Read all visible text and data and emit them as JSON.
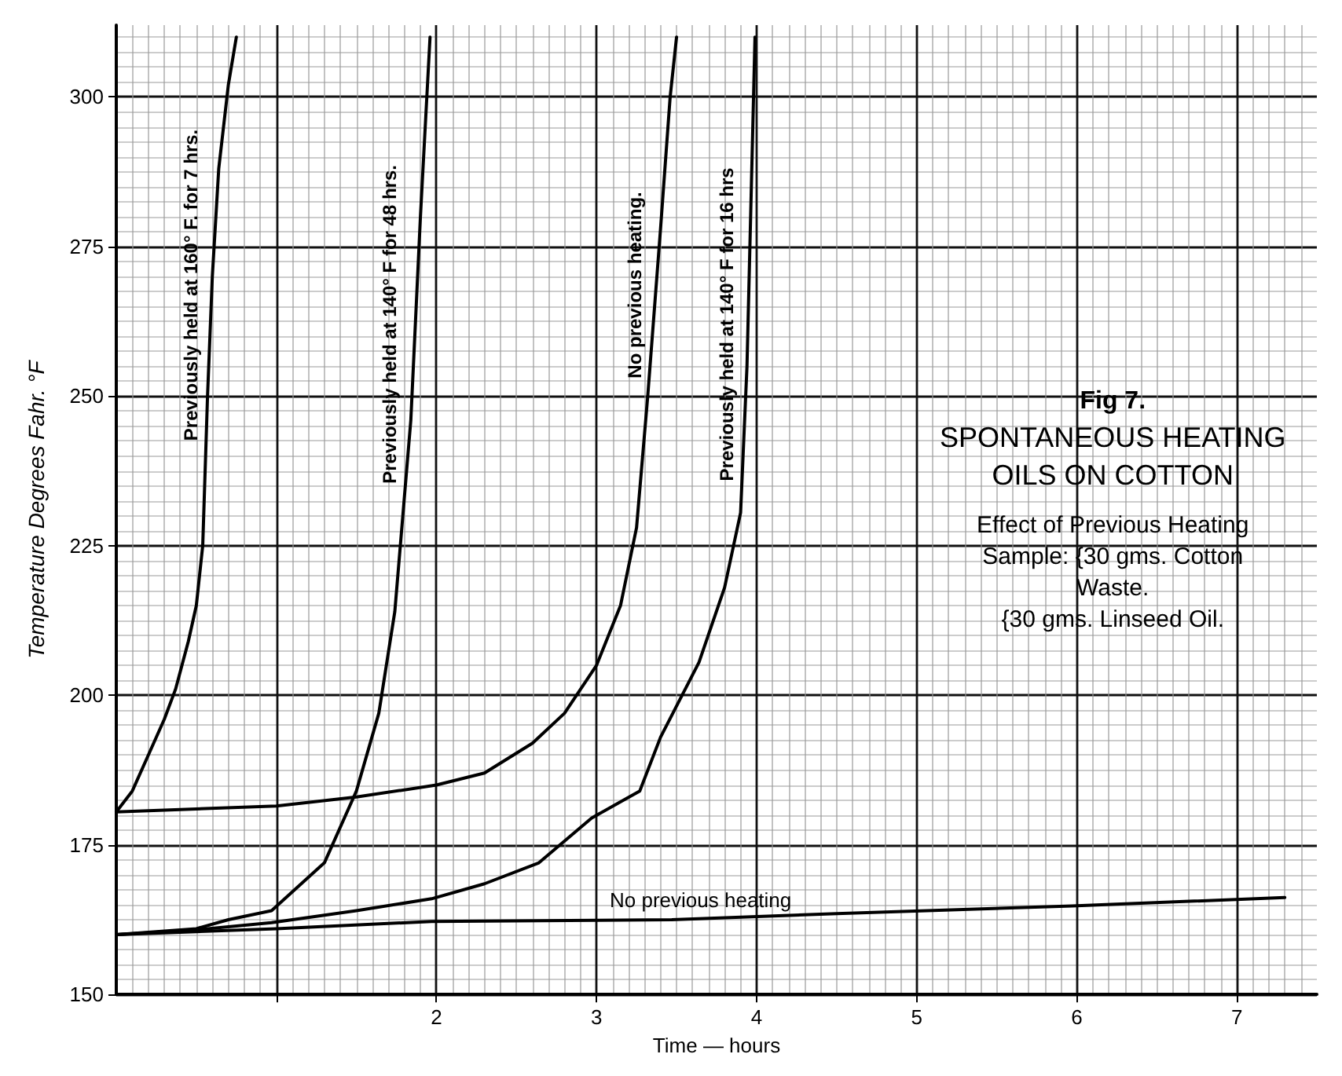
{
  "chart_data": {
    "type": "line",
    "title": "Fig 7.",
    "subtitle": "SPONTANEOUS HEATING OILS ON COTTON",
    "xlabel": "Time — hours",
    "ylabel": "Temperature Degrees Fahr. °F",
    "annotations": [
      "Effect of Previous Heating",
      "Sample: {30 gms. Cotton Waste.",
      "{30 gms. Linseed Oil."
    ],
    "xlim": [
      0,
      7.5
    ],
    "xticks": [
      {
        "value": 1,
        "label": null
      },
      2,
      3,
      4,
      5,
      6,
      7
    ],
    "ylim": [
      150,
      312
    ],
    "yticks": [
      150,
      175,
      200,
      225,
      250,
      275,
      300
    ],
    "grid": true,
    "legend": false,
    "marker": "none",
    "line_style": "solid",
    "series": [
      {
        "name": "Previously held at 160° F. for 7 hrs.",
        "color": "#000000",
        "x": [
          0,
          0.1,
          0.2,
          0.3,
          0.37,
          0.45,
          0.5,
          0.54,
          0.57,
          0.6,
          0.64,
          0.7,
          0.75
        ],
        "values": [
          180.5,
          184,
          190,
          196,
          201,
          209,
          215,
          225,
          250,
          270,
          288,
          302,
          310
        ]
      },
      {
        "name": "Previously held at 140° F for 48 hrs.",
        "color": "#000000",
        "x": [
          0,
          0.5,
          0.7,
          0.97,
          1.3,
          1.5,
          1.64,
          1.74,
          1.84,
          1.9,
          1.96
        ],
        "values": [
          160,
          161,
          162.5,
          164,
          172,
          184,
          197,
          214,
          246,
          280,
          310
        ]
      },
      {
        "name": "No previous heating.",
        "color": "#000000",
        "x": [
          0,
          0.5,
          1,
          1.5,
          2,
          2.3,
          2.6,
          2.8,
          3,
          3.15,
          3.25,
          3.32,
          3.4,
          3.46,
          3.5
        ],
        "values": [
          180.5,
          181,
          181.5,
          183,
          185,
          187,
          192,
          197,
          205,
          215,
          228,
          250,
          278,
          300,
          310
        ]
      },
      {
        "name": "Previously held at 140° F for 16 hrs",
        "color": "#000000",
        "x": [
          0,
          0.5,
          0.97,
          1.5,
          1.97,
          2.3,
          2.64,
          2.97,
          3.27,
          3.4,
          3.64,
          3.8,
          3.9,
          3.94,
          3.97,
          3.99
        ],
        "values": [
          160,
          160.8,
          162,
          164,
          166,
          168.5,
          172,
          179.5,
          184,
          193,
          205.5,
          218,
          230.5,
          255,
          288,
          310
        ]
      },
      {
        "name": "No previous heating",
        "color": "#000000",
        "x": [
          0,
          1,
          1.97,
          3,
          3.47,
          4.5,
          5.97,
          7.3
        ],
        "values": [
          160,
          161,
          162.2,
          162.4,
          162.5,
          163.5,
          164.8,
          166.2
        ]
      }
    ]
  }
}
